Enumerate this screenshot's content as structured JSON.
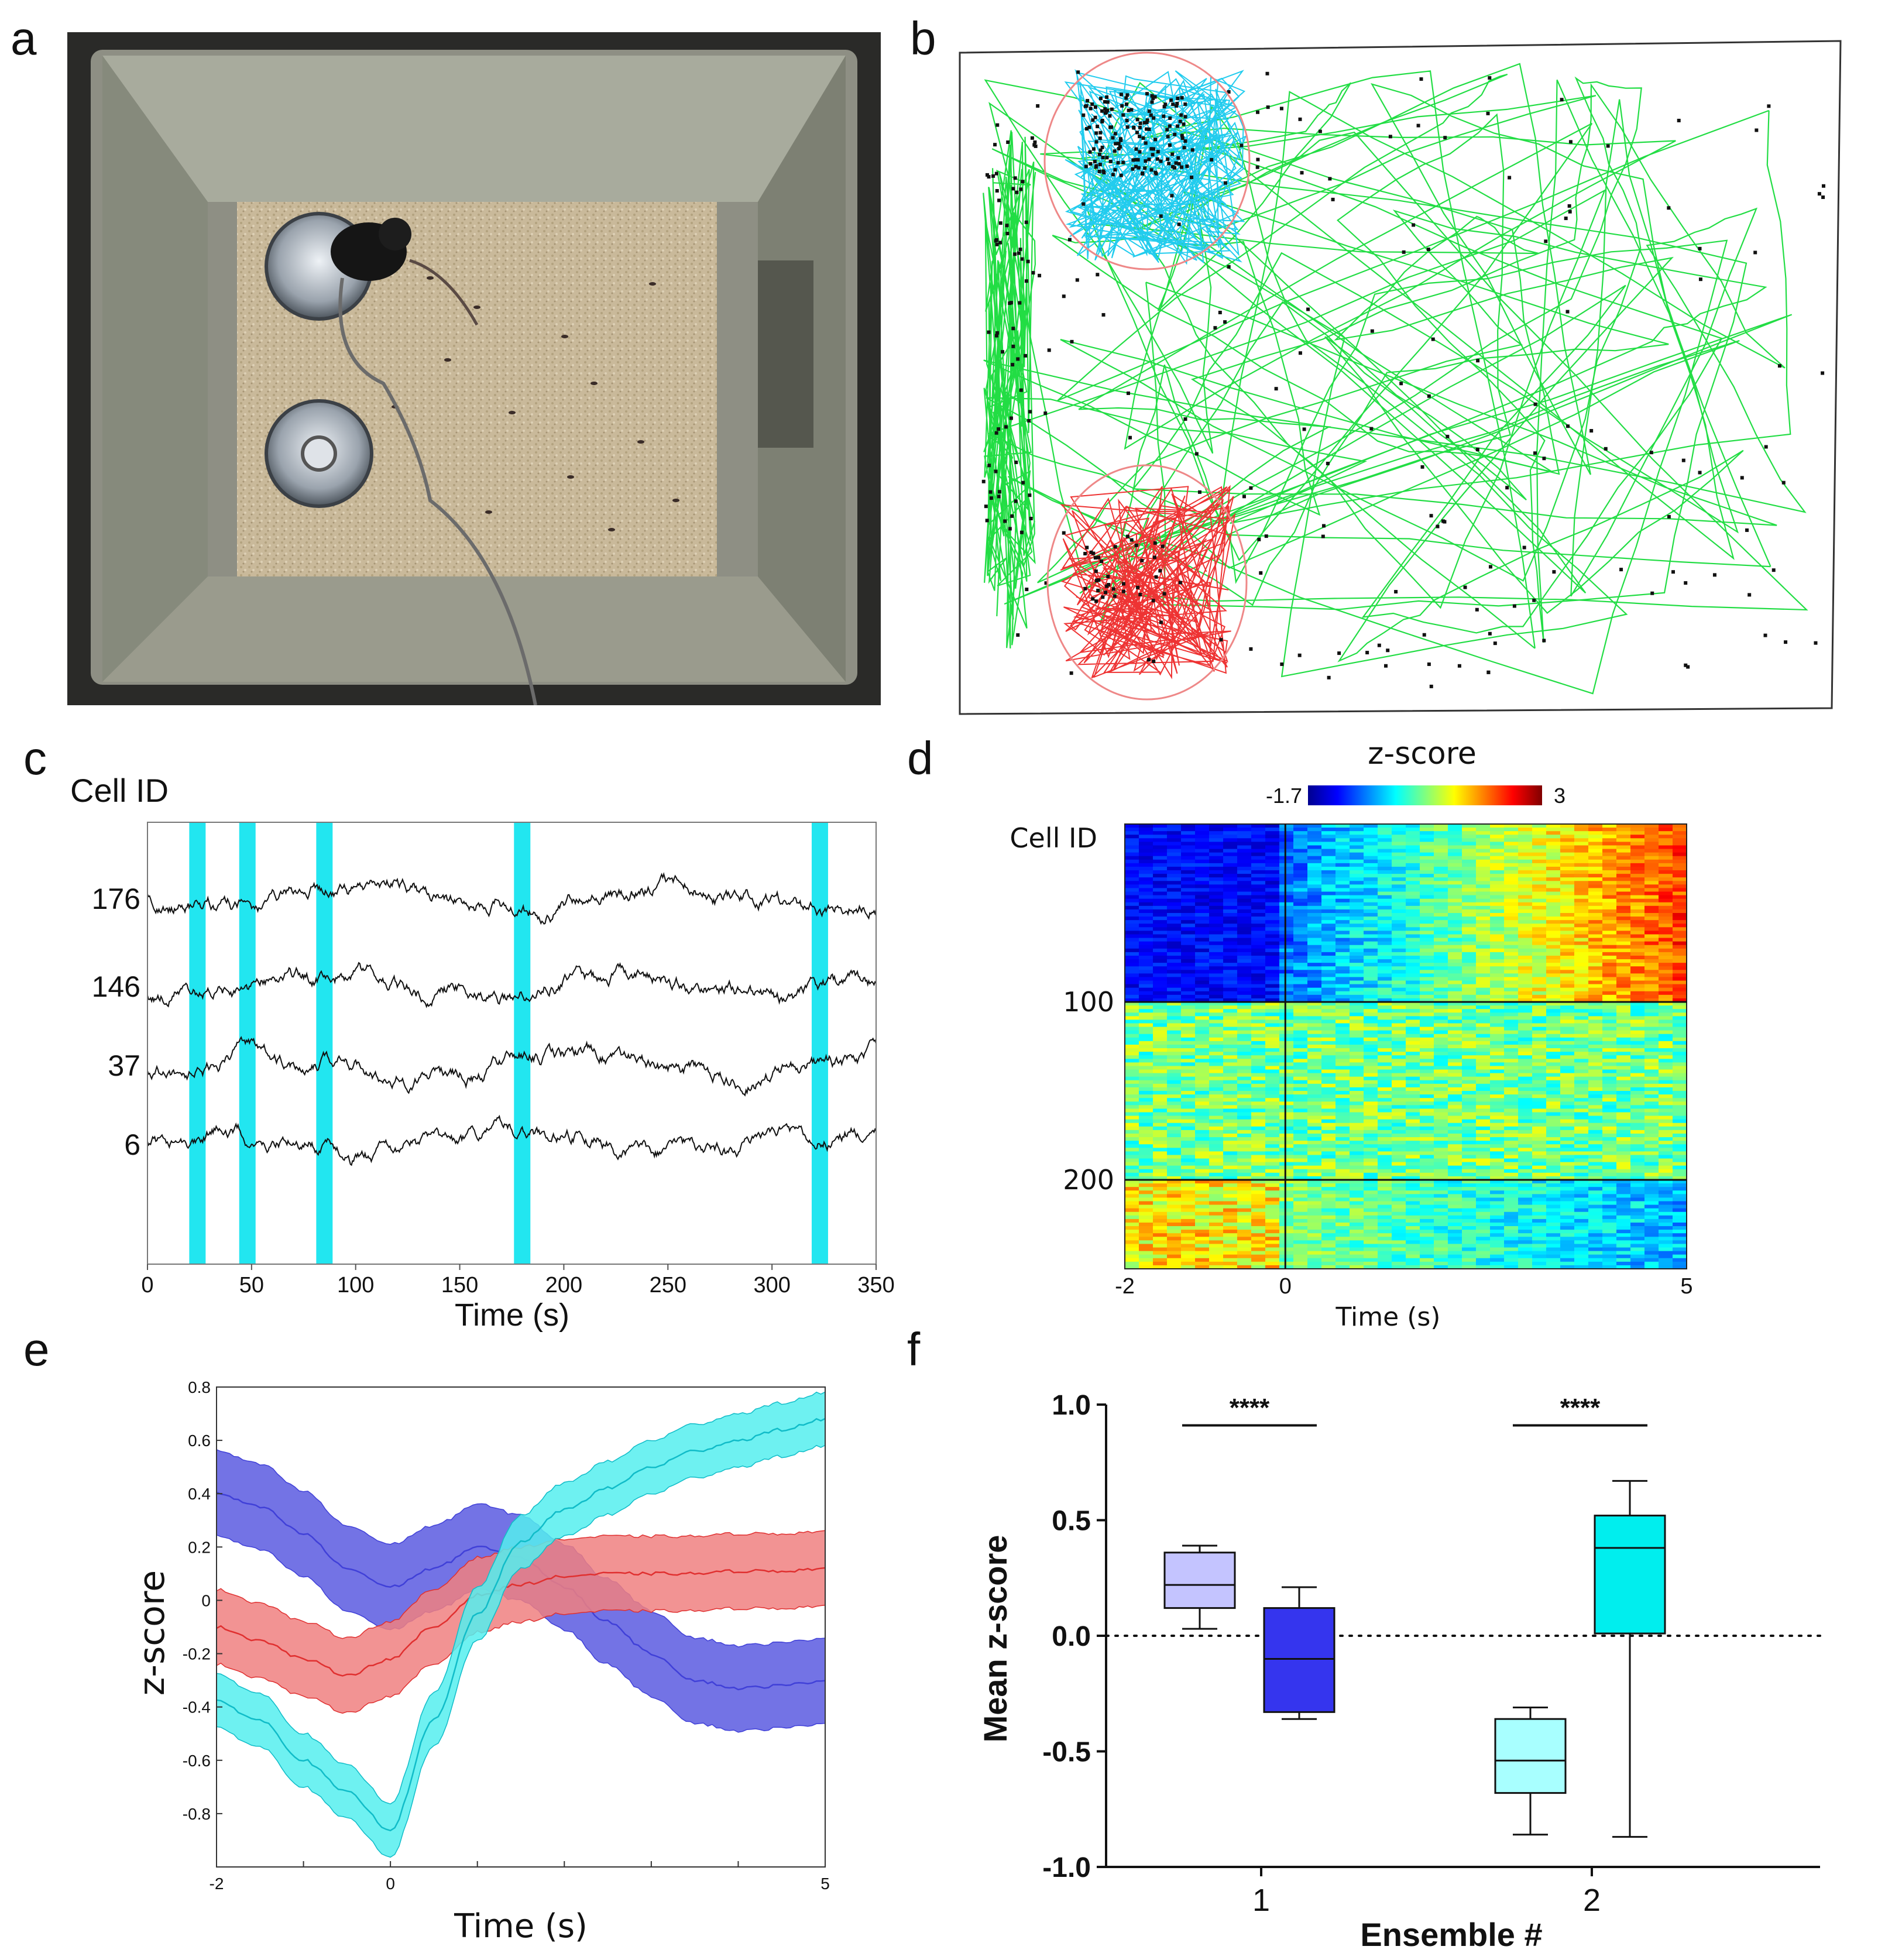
{
  "panels": {
    "a": "a",
    "b": "b",
    "c": "c",
    "d": "d",
    "e": "e",
    "f": "f"
  },
  "colors": {
    "trajectory": "#22dd44",
    "cyan_track": "#22ccee",
    "red_track": "#ee3333",
    "zone_circle": "#ee8888",
    "blue_band": "#5a5ae0",
    "red_band": "#f08080",
    "cyan_band": "#55eeee",
    "highlight": "#22e6f0"
  },
  "chart_data": [
    {
      "type": "line",
      "panel": "c",
      "title": "",
      "ylabel": "Cell ID",
      "xlabel": "Time (s)",
      "xlim": [
        0,
        350
      ],
      "x_ticks": [
        0,
        50,
        100,
        150,
        200,
        250,
        300,
        350
      ],
      "series": [
        {
          "name": "176",
          "baseline_rank": 1
        },
        {
          "name": "146",
          "baseline_rank": 2
        },
        {
          "name": "37",
          "baseline_rank": 3
        },
        {
          "name": "6",
          "baseline_rank": 4
        }
      ],
      "highlight_events_s": [
        24,
        48,
        85,
        180,
        323
      ]
    },
    {
      "type": "heatmap",
      "panel": "d",
      "title": "z-score",
      "colorbar_range": [
        -1.7,
        3
      ],
      "colorbar_min_label": "-1.7",
      "colorbar_max_label": "3",
      "ylabel": "Cell ID",
      "xlabel": "Time (s)",
      "xlim": [
        -2,
        5
      ],
      "x_ticks": [
        "-2",
        "0",
        "5"
      ],
      "y_ticks": [
        "100",
        "200"
      ],
      "n_cells": 250,
      "row_dividers": [
        100,
        200
      ],
      "event_line_time": 0
    },
    {
      "type": "area",
      "panel": "e",
      "ylabel": "z-score",
      "xlabel": "Time (s)",
      "xlim": [
        -2,
        5
      ],
      "ylim": [
        -1.0,
        0.8
      ],
      "y_ticks": [
        "0.8",
        "0.6",
        "0.4",
        "0.2",
        "0",
        "-0.2",
        "-0.4",
        "-0.6",
        "-0.8"
      ],
      "x_ticks": [
        "-2",
        "0",
        "5"
      ],
      "x": [
        -2,
        -1.5,
        -1,
        -0.5,
        0,
        0.5,
        1,
        1.5,
        2,
        2.5,
        3,
        3.5,
        4,
        4.5,
        5
      ],
      "series": [
        {
          "name": "blue",
          "color": "#4040d8",
          "values": [
            0.4,
            0.35,
            0.25,
            0.12,
            0.05,
            0.12,
            0.2,
            0.16,
            0.05,
            -0.08,
            -0.2,
            -0.3,
            -0.33,
            -0.32,
            -0.3
          ],
          "sem": 0.16
        },
        {
          "name": "red",
          "color": "#e03030",
          "values": [
            -0.1,
            -0.15,
            -0.22,
            -0.28,
            -0.22,
            -0.1,
            0.02,
            0.06,
            0.09,
            0.1,
            0.1,
            0.1,
            0.11,
            0.11,
            0.12
          ],
          "sem": 0.14
        },
        {
          "name": "cyan",
          "color": "#10bcc8",
          "values": [
            -0.38,
            -0.45,
            -0.6,
            -0.72,
            -0.86,
            -0.45,
            -0.05,
            0.22,
            0.34,
            0.42,
            0.5,
            0.56,
            0.6,
            0.64,
            0.68
          ],
          "sem": 0.1
        }
      ]
    },
    {
      "type": "box",
      "panel": "f",
      "ylabel": "Mean z-score",
      "xlabel": "Ensemble #",
      "ylim": [
        -1.0,
        1.0
      ],
      "y_ticks": [
        "1.0",
        "0.5",
        "0.0",
        "-0.5",
        "-1.0"
      ],
      "categories": [
        "1",
        "2"
      ],
      "significance": [
        "****",
        "****"
      ],
      "boxes": [
        {
          "group": "1",
          "color": "#c4c4ff",
          "min": 0.03,
          "q1": 0.12,
          "median": 0.22,
          "q3": 0.36,
          "max": 0.39
        },
        {
          "group": "1",
          "color": "#3535ee",
          "min": -0.36,
          "q1": -0.33,
          "median": -0.1,
          "q3": 0.12,
          "max": 0.21
        },
        {
          "group": "2",
          "color": "#a8ffff",
          "min": -0.86,
          "q1": -0.68,
          "median": -0.54,
          "q3": -0.36,
          "max": -0.31
        },
        {
          "group": "2",
          "color": "#00eeee",
          "min": -0.87,
          "q1": 0.01,
          "median": 0.38,
          "q3": 0.52,
          "max": 0.67
        }
      ]
    }
  ]
}
